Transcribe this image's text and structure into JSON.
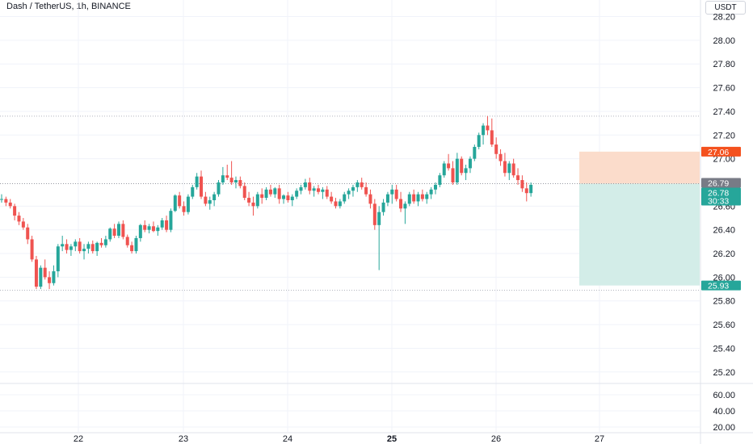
{
  "header": {
    "symbol_title": "Dash / TetherUS, 1h, BINANCE",
    "currency": "USDT"
  },
  "chart_data": {
    "type": "candlestick",
    "title": "Dash / TetherUS, 1h, BINANCE",
    "price_axis": {
      "ylim": [
        25.11,
        28.34
      ],
      "ticks": [
        "28.20",
        "28.00",
        "27.80",
        "27.60",
        "27.40",
        "27.20",
        "27.00",
        "26.60",
        "26.40",
        "26.20",
        "26.00",
        "25.80",
        "25.60",
        "25.40",
        "25.20"
      ]
    },
    "volume_axis": {
      "ticks": [
        "60.00",
        "40.00",
        "20.00"
      ]
    },
    "x_ticks": [
      "22",
      "23",
      "24",
      "25",
      "26",
      "27"
    ],
    "x_tick_emphasis": "25",
    "grid": true,
    "dotted_levels": [
      27.36,
      25.89
    ],
    "position": {
      "type": "long",
      "stop_loss_top": 27.06,
      "entry": 26.79,
      "take_profit_bottom": 25.93
    },
    "tags": {
      "stop_price": "27.06",
      "entry_price": "26.79",
      "last_price": "26.78",
      "countdown": "30:33",
      "target_price": "25.93"
    },
    "colors": {
      "up": "#26a69a",
      "down": "#ef5350",
      "profit_zone": "#d3ede8",
      "loss_zone": "#fbdccb",
      "stop_tag": "#f4511e",
      "entry_tag": "#787b86",
      "last_tag": "#26a69a",
      "target_tag": "#26a69a"
    },
    "candles": [
      [
        26.66,
        26.7,
        26.63,
        26.66
      ],
      [
        26.66,
        26.68,
        26.6,
        26.63
      ],
      [
        26.63,
        26.66,
        26.58,
        26.6
      ],
      [
        26.6,
        26.62,
        26.48,
        26.52
      ],
      [
        26.52,
        26.55,
        26.44,
        26.47
      ],
      [
        26.47,
        26.5,
        26.4,
        26.42
      ],
      [
        26.42,
        26.45,
        26.28,
        26.32
      ],
      [
        26.32,
        26.35,
        26.13,
        26.15
      ],
      [
        26.15,
        26.18,
        25.9,
        25.92
      ],
      [
        25.92,
        26.1,
        25.9,
        26.08
      ],
      [
        26.08,
        26.15,
        25.98,
        26.0
      ],
      [
        26.0,
        26.05,
        25.9,
        25.95
      ],
      [
        25.95,
        26.1,
        25.93,
        26.05
      ],
      [
        26.05,
        26.28,
        26.0,
        26.26
      ],
      [
        26.26,
        26.35,
        26.22,
        26.28
      ],
      [
        26.28,
        26.32,
        26.2,
        26.23
      ],
      [
        26.23,
        26.28,
        26.18,
        26.26
      ],
      [
        26.26,
        26.32,
        26.22,
        26.3
      ],
      [
        26.3,
        26.33,
        26.2,
        26.22
      ],
      [
        26.22,
        26.28,
        26.15,
        26.24
      ],
      [
        26.24,
        26.3,
        26.2,
        26.28
      ],
      [
        26.28,
        26.31,
        26.2,
        26.22
      ],
      [
        26.22,
        26.3,
        26.18,
        26.29
      ],
      [
        26.29,
        26.33,
        26.25,
        26.27
      ],
      [
        26.27,
        26.35,
        26.25,
        26.32
      ],
      [
        26.32,
        26.42,
        26.3,
        26.41
      ],
      [
        26.41,
        26.45,
        26.33,
        26.35
      ],
      [
        26.35,
        26.47,
        26.33,
        26.45
      ],
      [
        26.45,
        26.48,
        26.32,
        26.34
      ],
      [
        26.34,
        26.36,
        26.25,
        26.27
      ],
      [
        26.27,
        26.3,
        26.2,
        26.22
      ],
      [
        26.22,
        26.35,
        26.2,
        26.33
      ],
      [
        26.33,
        26.45,
        26.3,
        26.44
      ],
      [
        26.44,
        26.48,
        26.38,
        26.4
      ],
      [
        26.4,
        26.45,
        26.37,
        26.43
      ],
      [
        26.43,
        26.47,
        26.38,
        26.39
      ],
      [
        26.39,
        26.44,
        26.35,
        26.42
      ],
      [
        26.42,
        26.5,
        26.4,
        26.48
      ],
      [
        26.48,
        26.52,
        26.38,
        26.4
      ],
      [
        26.4,
        26.58,
        26.38,
        26.56
      ],
      [
        26.56,
        26.7,
        26.55,
        26.69
      ],
      [
        26.69,
        26.72,
        26.58,
        26.6
      ],
      [
        26.6,
        26.64,
        26.52,
        26.55
      ],
      [
        26.55,
        26.7,
        26.53,
        26.68
      ],
      [
        26.68,
        26.78,
        26.66,
        26.76
      ],
      [
        26.76,
        26.88,
        26.74,
        26.85
      ],
      [
        26.85,
        26.9,
        26.66,
        26.68
      ],
      [
        26.68,
        26.72,
        26.6,
        26.62
      ],
      [
        26.62,
        26.68,
        26.57,
        26.65
      ],
      [
        26.65,
        26.72,
        26.6,
        26.7
      ],
      [
        26.7,
        26.82,
        26.68,
        26.8
      ],
      [
        26.8,
        26.93,
        26.78,
        26.86
      ],
      [
        26.86,
        26.95,
        26.82,
        26.84
      ],
      [
        26.84,
        26.98,
        26.78,
        26.8
      ],
      [
        26.8,
        26.85,
        26.75,
        26.82
      ],
      [
        26.82,
        26.85,
        26.75,
        26.77
      ],
      [
        26.77,
        26.8,
        26.65,
        26.67
      ],
      [
        26.67,
        26.72,
        26.6,
        26.63
      ],
      [
        26.63,
        26.68,
        26.52,
        26.6
      ],
      [
        26.6,
        26.72,
        26.58,
        26.7
      ],
      [
        26.7,
        26.75,
        26.62,
        26.67
      ],
      [
        26.67,
        26.76,
        26.65,
        26.74
      ],
      [
        26.74,
        26.78,
        26.68,
        26.7
      ],
      [
        26.7,
        26.76,
        26.67,
        26.75
      ],
      [
        26.75,
        26.78,
        26.62,
        26.66
      ],
      [
        26.66,
        26.7,
        26.62,
        26.69
      ],
      [
        26.69,
        26.72,
        26.63,
        26.65
      ],
      [
        26.65,
        26.7,
        26.6,
        26.68
      ],
      [
        26.68,
        26.75,
        26.66,
        26.73
      ],
      [
        26.73,
        26.78,
        26.7,
        26.76
      ],
      [
        26.76,
        26.83,
        26.74,
        26.8
      ],
      [
        26.8,
        26.84,
        26.7,
        26.73
      ],
      [
        26.73,
        26.77,
        26.68,
        26.75
      ],
      [
        26.75,
        26.78,
        26.7,
        26.72
      ],
      [
        26.72,
        26.76,
        26.66,
        26.74
      ],
      [
        26.74,
        26.77,
        26.66,
        26.68
      ],
      [
        26.68,
        26.72,
        26.62,
        26.64
      ],
      [
        26.64,
        26.67,
        26.58,
        26.6
      ],
      [
        26.6,
        26.66,
        26.58,
        26.64
      ],
      [
        26.64,
        26.72,
        26.62,
        26.7
      ],
      [
        26.7,
        26.75,
        26.66,
        26.73
      ],
      [
        26.73,
        26.78,
        26.68,
        26.76
      ],
      [
        26.76,
        26.82,
        26.72,
        26.8
      ],
      [
        26.8,
        26.84,
        26.74,
        26.76
      ],
      [
        26.76,
        26.8,
        26.68,
        26.7
      ],
      [
        26.7,
        26.74,
        26.58,
        26.62
      ],
      [
        26.62,
        26.66,
        26.4,
        26.44
      ],
      [
        26.44,
        26.6,
        26.06,
        26.55
      ],
      [
        26.55,
        26.66,
        26.52,
        26.63
      ],
      [
        26.63,
        26.72,
        26.6,
        26.7
      ],
      [
        26.7,
        26.78,
        26.62,
        26.74
      ],
      [
        26.74,
        26.78,
        26.64,
        26.66
      ],
      [
        26.66,
        26.72,
        26.55,
        26.58
      ],
      [
        26.58,
        26.64,
        26.45,
        26.62
      ],
      [
        26.62,
        26.72,
        26.6,
        26.7
      ],
      [
        26.7,
        26.74,
        26.62,
        26.64
      ],
      [
        26.64,
        26.72,
        26.6,
        26.7
      ],
      [
        26.7,
        26.74,
        26.64,
        26.66
      ],
      [
        26.66,
        26.72,
        26.62,
        26.7
      ],
      [
        26.7,
        26.76,
        26.66,
        26.74
      ],
      [
        26.74,
        26.8,
        26.7,
        26.78
      ],
      [
        26.78,
        26.88,
        26.76,
        26.86
      ],
      [
        26.86,
        26.98,
        26.84,
        26.96
      ],
      [
        26.96,
        27.04,
        26.9,
        26.92
      ],
      [
        26.92,
        26.98,
        26.78,
        26.8
      ],
      [
        26.8,
        27.05,
        26.78,
        27.0
      ],
      [
        27.0,
        27.02,
        26.86,
        26.88
      ],
      [
        26.88,
        26.95,
        26.82,
        26.92
      ],
      [
        26.92,
        27.02,
        26.88,
        27.0
      ],
      [
        27.0,
        27.12,
        26.98,
        27.1
      ],
      [
        27.1,
        27.22,
        27.08,
        27.2
      ],
      [
        27.2,
        27.3,
        27.12,
        27.28
      ],
      [
        27.28,
        27.36,
        27.2,
        27.24
      ],
      [
        27.24,
        27.34,
        27.1,
        27.12
      ],
      [
        27.12,
        27.18,
        27.0,
        27.04
      ],
      [
        27.04,
        27.08,
        26.94,
        26.98
      ],
      [
        26.98,
        27.05,
        26.85,
        26.88
      ],
      [
        26.88,
        26.98,
        26.82,
        26.96
      ],
      [
        26.96,
        27.0,
        26.84,
        26.86
      ],
      [
        26.86,
        26.92,
        26.78,
        26.82
      ],
      [
        26.82,
        26.86,
        26.72,
        26.75
      ],
      [
        26.75,
        26.8,
        26.64,
        26.71
      ],
      [
        26.71,
        26.8,
        26.68,
        26.78
      ]
    ]
  }
}
